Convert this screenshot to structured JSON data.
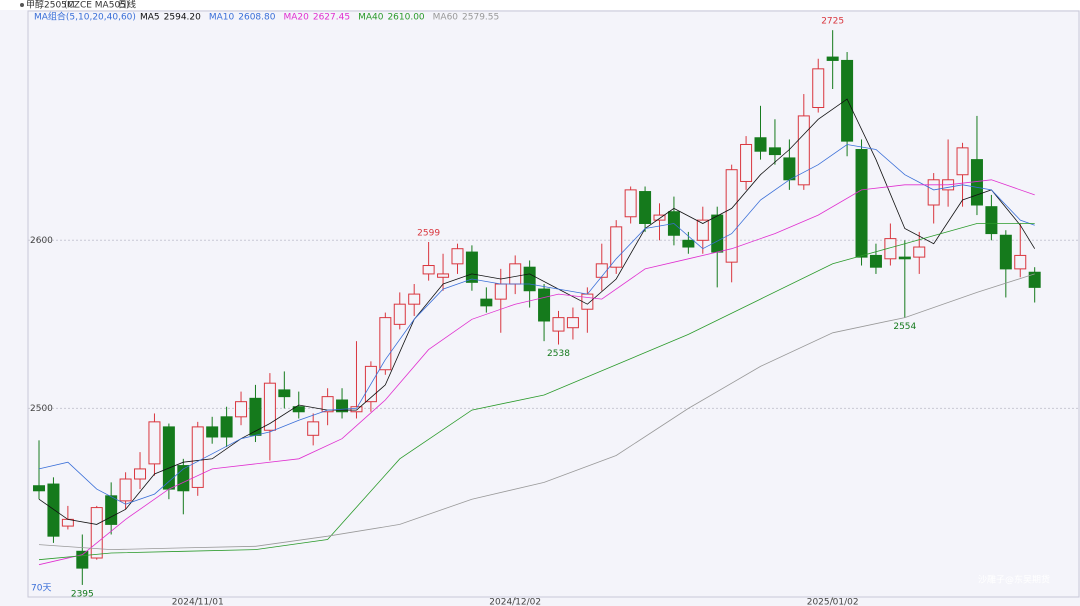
{
  "chart_data": {
    "type": "candlestick",
    "title": "甲醇2505M",
    "subtitle": "(CZCE MA505)",
    "period": "日线",
    "indicator": "MA组合(5,10,20,40,60)",
    "count_label": "70天",
    "watermark": "沙雕子@东吴期货",
    "up_color": "#d9363e",
    "down_color": "#157a1c",
    "ylim": [
      2389,
      2737
    ],
    "yticks": [
      2500,
      2600
    ],
    "grid": true,
    "categories": [
      null,
      null,
      null,
      null,
      null,
      null,
      null,
      null,
      null,
      null,
      null,
      "2024/11/01",
      null,
      null,
      null,
      null,
      null,
      null,
      null,
      null,
      null,
      null,
      null,
      null,
      null,
      null,
      null,
      null,
      null,
      null,
      null,
      null,
      null,
      "2024/12/02",
      null,
      null,
      null,
      null,
      null,
      null,
      null,
      null,
      null,
      null,
      null,
      null,
      null,
      null,
      null,
      null,
      null,
      null,
      null,
      null,
      null,
      "2025/01/02",
      null,
      null,
      null,
      null,
      null,
      null,
      null,
      null,
      null,
      null,
      null,
      null,
      null,
      null
    ],
    "open": [
      2454,
      2455,
      2430,
      2415,
      2411,
      2448,
      2445,
      2458,
      2467,
      2489,
      2466,
      2453,
      2489,
      2495,
      2495,
      2506,
      2487,
      2511,
      2501,
      2484,
      2498,
      2505,
      2498,
      2504,
      2523,
      2550,
      2562,
      2580,
      2578,
      2586,
      2593,
      2565,
      2565,
      2574,
      2584,
      2571,
      2546,
      2548,
      2559,
      2578,
      2584,
      2614,
      2629,
      2612,
      2617,
      2600,
      2600,
      2615,
      2587,
      2635,
      2661,
      2655,
      2649,
      2633,
      2679,
      2709,
      2707,
      2654,
      2591,
      2589,
      2590,
      2590,
      2621,
      2630,
      2639,
      2648,
      2620,
      2603,
      2583,
      2581
    ],
    "high": [
      2481,
      2459,
      2442,
      2425,
      2442,
      2456,
      2462,
      2474,
      2497,
      2491,
      2470,
      2492,
      2495,
      2501,
      2510,
      2514,
      2521,
      2522,
      2510,
      2497,
      2512,
      2512,
      2540,
      2528,
      2557,
      2569,
      2574,
      2599,
      2592,
      2598,
      2597,
      2572,
      2583,
      2591,
      2588,
      2574,
      2558,
      2560,
      2572,
      2598,
      2612,
      2632,
      2632,
      2622,
      2626,
      2605,
      2620,
      2620,
      2645,
      2662,
      2680,
      2672,
      2660,
      2687,
      2708,
      2725,
      2712,
      2660,
      2598,
      2610,
      2600,
      2605,
      2640,
      2660,
      2658,
      2674,
      2627,
      2606,
      2610,
      2584
    ],
    "low": [
      2446,
      2420,
      2428,
      2395,
      2410,
      2425,
      2440,
      2452,
      2460,
      2446,
      2437,
      2448,
      2479,
      2477,
      2490,
      2480,
      2469,
      2500,
      2494,
      2478,
      2490,
      2494,
      2494,
      2498,
      2520,
      2547,
      2555,
      2576,
      2570,
      2580,
      2570,
      2557,
      2545,
      2568,
      2560,
      2540,
      2538,
      2541,
      2545,
      2570,
      2580,
      2610,
      2605,
      2600,
      2597,
      2592,
      2592,
      2572,
      2575,
      2630,
      2648,
      2645,
      2630,
      2630,
      2676,
      2690,
      2650,
      2585,
      2580,
      2585,
      2554,
      2580,
      2610,
      2620,
      2620,
      2615,
      2600,
      2566,
      2578,
      2563
    ],
    "close": [
      2451,
      2424,
      2434,
      2405,
      2441,
      2431,
      2458,
      2464,
      2492,
      2452,
      2451,
      2489,
      2483,
      2483,
      2504,
      2484,
      2515,
      2507,
      2498,
      2492,
      2507,
      2498,
      2501,
      2525,
      2554,
      2562,
      2568,
      2585,
      2580,
      2595,
      2575,
      2561,
      2574,
      2586,
      2570,
      2552,
      2554,
      2554,
      2568,
      2586,
      2608,
      2630,
      2610,
      2615,
      2603,
      2596,
      2612,
      2593,
      2642,
      2657,
      2653,
      2651,
      2636,
      2674,
      2702,
      2707,
      2659,
      2590,
      2584,
      2601,
      2589,
      2596,
      2636,
      2636,
      2655,
      2621,
      2604,
      2583,
      2591,
      2572
    ],
    "series": [
      {
        "name": "MA5",
        "legend_value": "2594.20",
        "color": "#111111",
        "x": [
          0,
          2,
          4,
          6,
          8,
          10,
          12,
          14,
          16,
          18,
          20,
          22,
          24,
          26,
          28,
          30,
          32,
          34,
          36,
          38,
          40,
          42,
          44,
          46,
          48,
          50,
          52,
          54,
          56,
          58,
          60,
          62,
          64,
          66,
          68,
          69
        ],
        "values": [
          2446,
          2434,
          2431,
          2440,
          2461,
          2468,
          2470,
          2482,
          2491,
          2502,
          2499,
          2499,
          2514,
          2553,
          2574,
          2580,
          2577,
          2580,
          2571,
          2562,
          2577,
          2607,
          2619,
          2610,
          2619,
          2639,
          2654,
          2672,
          2684,
          2648,
          2607,
          2598,
          2624,
          2630,
          2609,
          2595
        ]
      },
      {
        "name": "MA10",
        "legend_value": "2608.80",
        "color": "#3a6fd8",
        "x": [
          0,
          2,
          4,
          6,
          8,
          10,
          12,
          14,
          16,
          18,
          20,
          22,
          24,
          26,
          28,
          30,
          32,
          34,
          36,
          38,
          40,
          42,
          44,
          46,
          48,
          50,
          52,
          54,
          56,
          58,
          60,
          62,
          64,
          66,
          68,
          69
        ],
        "values": [
          2464,
          2468,
          2452,
          2443,
          2449,
          2464,
          2473,
          2482,
          2486,
          2493,
          2499,
          2500,
          2529,
          2553,
          2571,
          2577,
          2574,
          2574,
          2571,
          2568,
          2589,
          2607,
          2610,
          2595,
          2604,
          2624,
          2636,
          2645,
          2657,
          2654,
          2639,
          2630,
          2633,
          2630,
          2612,
          2609
        ]
      },
      {
        "name": "MA20",
        "legend_value": "2627.45",
        "color": "#e030d0",
        "x": [
          0,
          3,
          6,
          9,
          12,
          15,
          18,
          21,
          24,
          27,
          30,
          33,
          36,
          39,
          42,
          45,
          48,
          51,
          54,
          57,
          60,
          63,
          66,
          69
        ],
        "values": [
          2407,
          2413,
          2434,
          2452,
          2464,
          2467,
          2470,
          2482,
          2505,
          2535,
          2553,
          2562,
          2568,
          2565,
          2583,
          2589,
          2595,
          2604,
          2615,
          2630,
          2633,
          2633,
          2636,
          2627
        ]
      },
      {
        "name": "MA40",
        "legend_value": "2610.00",
        "color": "#2a9a2a",
        "x": [
          0,
          5,
          10,
          15,
          20,
          25,
          30,
          35,
          40,
          45,
          50,
          55,
          60,
          65,
          69
        ],
        "values": [
          2410,
          2414,
          2415,
          2416,
          2422,
          2470,
          2499,
          2508,
          2526,
          2544,
          2565,
          2586,
          2598,
          2610,
          2610
        ]
      },
      {
        "name": "MA60",
        "legend_value": "2579.55",
        "color": "#999999",
        "x": [
          0,
          5,
          10,
          15,
          20,
          25,
          30,
          35,
          40,
          45,
          50,
          55,
          60,
          65,
          69
        ],
        "values": [
          2419,
          2416,
          2417,
          2418,
          2424,
          2431,
          2446,
          2456,
          2472,
          2500,
          2525,
          2545,
          2554,
          2569,
          2580
        ]
      }
    ],
    "annotations": [
      {
        "index": 55,
        "value": 2725,
        "at": "high"
      },
      {
        "index": 27,
        "value": 2599,
        "at": "high"
      },
      {
        "index": 36,
        "value": 2538,
        "at": "low"
      },
      {
        "index": 60,
        "value": 2554,
        "at": "low"
      },
      {
        "index": 3,
        "value": 2395,
        "at": "low"
      }
    ]
  }
}
